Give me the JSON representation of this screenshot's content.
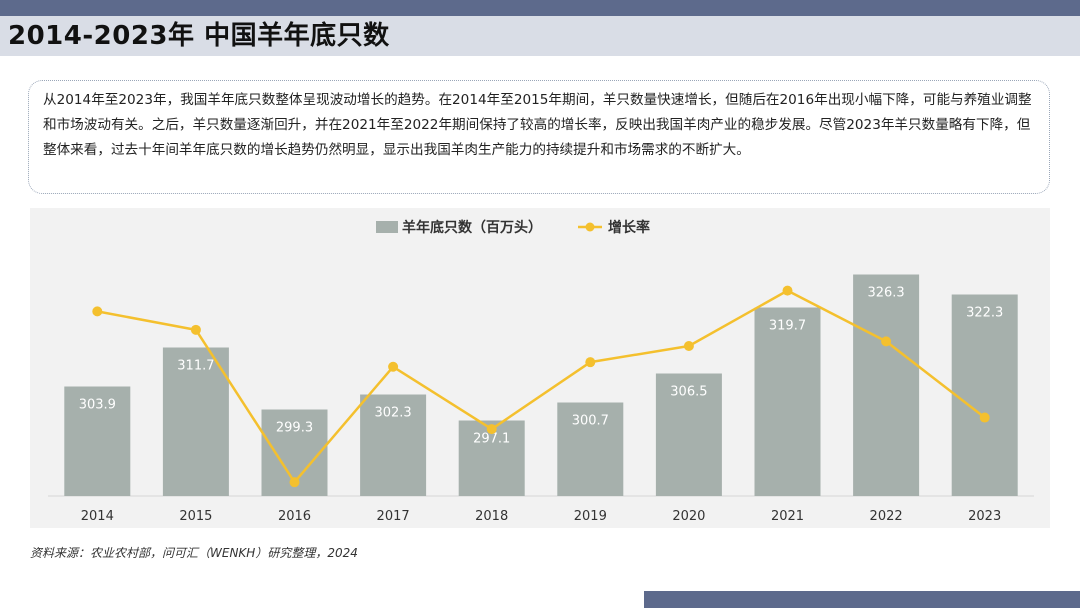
{
  "page": {
    "title": "2014-2023年 中国羊年底只数",
    "summary": "从2014年至2023年，我国羊年底只数整体呈现波动增长的趋势。在2014年至2015年期间，羊只数量快速增长，但随后在2016年出现小幅下降，可能与养殖业调整和市场波动有关。之后，羊只数量逐渐回升，并在2021年至2022年期间保持了较高的增长率，反映出我国羊肉产业的稳步发展。尽管2023年羊只数量略有下降，但整体来看，过去十年间羊年底只数的增长趋势仍然明显，显示出我国羊肉生产能力的持续提升和市场需求的不断扩大。",
    "source": "资料来源：农业农村部，问可汇（WENKH）研究整理，2024"
  },
  "colors": {
    "bar": "#a6b0ac",
    "line": "#f4c02e",
    "bar_label": "#ffffff",
    "axis_text": "#333333",
    "header_band": "#5d6a8c",
    "title_band": "#d9dde6"
  },
  "chart_data": {
    "type": "bar+line",
    "categories": [
      "2014",
      "2015",
      "2016",
      "2017",
      "2018",
      "2019",
      "2020",
      "2021",
      "2022",
      "2023"
    ],
    "series": [
      {
        "name": "羊年底只数（百万头）",
        "type": "bar",
        "values": [
          303.9,
          311.7,
          299.3,
          302.3,
          297.1,
          300.7,
          306.5,
          319.7,
          326.3,
          322.3
        ],
        "labels": [
          "303.9",
          "311.7",
          "299.3",
          "302.3",
          "297.1",
          "300.7",
          "306.5",
          "319.7",
          "326.3",
          "322.3"
        ]
      },
      {
        "name": "增长率",
        "type": "line",
        "values": [
          3.4,
          2.6,
          -4.0,
          1.0,
          -1.7,
          1.2,
          1.9,
          4.3,
          2.1,
          -1.2
        ]
      }
    ],
    "legend_position": "top-center",
    "grid": false,
    "bar_axis_range": [
      282,
      330
    ],
    "line_axis_range": [
      -4.6,
      5.8
    ]
  }
}
